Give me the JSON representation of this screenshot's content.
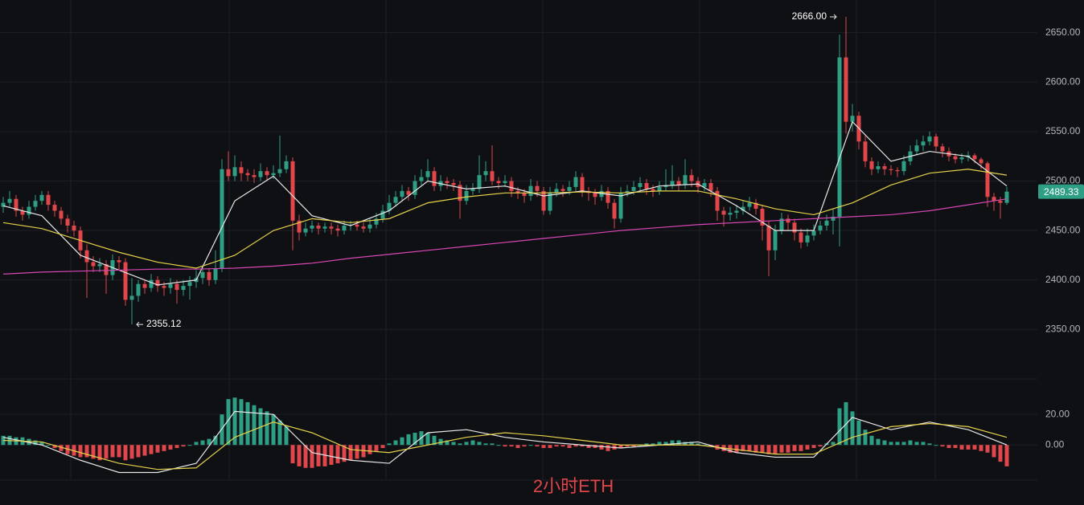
{
  "chart_data": {
    "type": "candlestick",
    "caption": "2小时ETH",
    "up_color": "#2e9e85",
    "down_color": "#e0464a",
    "ylim": [
      2300,
      2683
    ],
    "yticks": [
      {
        "value": 2350,
        "label": "2350.00"
      },
      {
        "value": 2400,
        "label": "2400.00"
      },
      {
        "value": 2450,
        "label": "2450.00"
      },
      {
        "value": 2500,
        "label": "2500.00"
      },
      {
        "value": 2550,
        "label": "2550.00"
      },
      {
        "value": 2600,
        "label": "2600.00"
      },
      {
        "value": 2650,
        "label": "2650.00"
      }
    ],
    "grid": true,
    "last_price": {
      "value": 2489.33,
      "label": "2489.33"
    },
    "high_marker": {
      "value": 2666,
      "label": "2666.00"
    },
    "low_marker": {
      "value": 2355.12,
      "label": "2355.12"
    },
    "ohlc": [
      [
        2474,
        2484,
        2468,
        2478
      ],
      [
        2478,
        2490,
        2474,
        2482
      ],
      [
        2482,
        2486,
        2464,
        2470
      ],
      [
        2470,
        2474,
        2460,
        2466
      ],
      [
        2466,
        2480,
        2462,
        2474
      ],
      [
        2474,
        2486,
        2470,
        2480
      ],
      [
        2480,
        2490,
        2476,
        2486
      ],
      [
        2486,
        2490,
        2470,
        2476
      ],
      [
        2476,
        2480,
        2464,
        2470
      ],
      [
        2470,
        2474,
        2456,
        2462
      ],
      [
        2462,
        2466,
        2448,
        2455
      ],
      [
        2455,
        2460,
        2444,
        2450
      ],
      [
        2450,
        2454,
        2422,
        2430
      ],
      [
        2430,
        2436,
        2382,
        2418
      ],
      [
        2418,
        2424,
        2408,
        2414
      ],
      [
        2414,
        2422,
        2408,
        2416
      ],
      [
        2416,
        2420,
        2386,
        2405
      ],
      [
        2405,
        2426,
        2400,
        2420
      ],
      [
        2420,
        2424,
        2410,
        2418
      ],
      [
        2418,
        2422,
        2374,
        2380
      ],
      [
        2380,
        2402,
        2355.12,
        2384
      ],
      [
        2384,
        2400,
        2378,
        2396
      ],
      [
        2396,
        2400,
        2386,
        2392
      ],
      [
        2392,
        2406,
        2388,
        2400
      ],
      [
        2400,
        2404,
        2388,
        2394
      ],
      [
        2394,
        2398,
        2384,
        2392
      ],
      [
        2392,
        2402,
        2386,
        2396
      ],
      [
        2396,
        2400,
        2376,
        2390
      ],
      [
        2390,
        2400,
        2384,
        2394
      ],
      [
        2394,
        2404,
        2380,
        2398
      ],
      [
        2398,
        2410,
        2392,
        2402
      ],
      [
        2402,
        2414,
        2396,
        2408
      ],
      [
        2408,
        2412,
        2394,
        2400
      ],
      [
        2400,
        2430,
        2396,
        2412
      ],
      [
        2412,
        2522,
        2408,
        2512
      ],
      [
        2512,
        2530,
        2500,
        2505
      ],
      [
        2505,
        2526,
        2500,
        2514
      ],
      [
        2514,
        2520,
        2500,
        2508
      ],
      [
        2508,
        2512,
        2500,
        2506
      ],
      [
        2506,
        2512,
        2498,
        2504
      ],
      [
        2504,
        2518,
        2500,
        2510
      ],
      [
        2510,
        2514,
        2500,
        2506
      ],
      [
        2506,
        2516,
        2502,
        2508
      ],
      [
        2508,
        2546,
        2504,
        2512
      ],
      [
        2512,
        2526,
        2508,
        2520
      ],
      [
        2520,
        2524,
        2430,
        2460
      ],
      [
        2460,
        2466,
        2440,
        2448
      ],
      [
        2448,
        2458,
        2444,
        2452
      ],
      [
        2452,
        2460,
        2448,
        2455
      ],
      [
        2455,
        2458,
        2446,
        2452
      ],
      [
        2452,
        2458,
        2448,
        2454
      ],
      [
        2454,
        2458,
        2446,
        2452
      ],
      [
        2452,
        2456,
        2444,
        2450
      ],
      [
        2450,
        2460,
        2446,
        2455
      ],
      [
        2455,
        2460,
        2450,
        2456
      ],
      [
        2456,
        2460,
        2450,
        2454
      ],
      [
        2454,
        2458,
        2448,
        2452
      ],
      [
        2452,
        2462,
        2448,
        2456
      ],
      [
        2456,
        2468,
        2452,
        2462
      ],
      [
        2462,
        2476,
        2458,
        2470
      ],
      [
        2470,
        2486,
        2466,
        2478
      ],
      [
        2478,
        2490,
        2474,
        2484
      ],
      [
        2484,
        2496,
        2480,
        2490
      ],
      [
        2490,
        2494,
        2480,
        2486
      ],
      [
        2486,
        2506,
        2482,
        2500
      ],
      [
        2500,
        2512,
        2496,
        2504
      ],
      [
        2504,
        2522,
        2500,
        2510
      ],
      [
        2510,
        2514,
        2490,
        2495
      ],
      [
        2495,
        2506,
        2490,
        2500
      ],
      [
        2500,
        2504,
        2492,
        2498
      ],
      [
        2498,
        2502,
        2490,
        2496
      ],
      [
        2496,
        2500,
        2462,
        2480
      ],
      [
        2480,
        2496,
        2476,
        2490
      ],
      [
        2490,
        2498,
        2486,
        2492
      ],
      [
        2492,
        2526,
        2488,
        2506
      ],
      [
        2506,
        2520,
        2500,
        2510
      ],
      [
        2510,
        2536,
        2496,
        2500
      ],
      [
        2500,
        2504,
        2492,
        2498
      ],
      [
        2498,
        2506,
        2494,
        2500
      ],
      [
        2500,
        2504,
        2484,
        2490
      ],
      [
        2490,
        2494,
        2482,
        2488
      ],
      [
        2488,
        2492,
        2478,
        2485
      ],
      [
        2485,
        2502,
        2480,
        2495
      ],
      [
        2495,
        2500,
        2484,
        2490
      ],
      [
        2490,
        2494,
        2466,
        2470
      ],
      [
        2470,
        2494,
        2466,
        2488
      ],
      [
        2488,
        2498,
        2484,
        2492
      ],
      [
        2492,
        2496,
        2484,
        2490
      ],
      [
        2490,
        2500,
        2486,
        2494
      ],
      [
        2494,
        2510,
        2490,
        2504
      ],
      [
        2504,
        2508,
        2484,
        2490
      ],
      [
        2490,
        2494,
        2480,
        2488
      ],
      [
        2488,
        2492,
        2476,
        2484
      ],
      [
        2484,
        2496,
        2480,
        2490
      ],
      [
        2490,
        2494,
        2472,
        2478
      ],
      [
        2478,
        2482,
        2452,
        2462
      ],
      [
        2462,
        2494,
        2458,
        2488
      ],
      [
        2488,
        2496,
        2484,
        2490
      ],
      [
        2490,
        2500,
        2486,
        2494
      ],
      [
        2494,
        2504,
        2490,
        2498
      ],
      [
        2498,
        2502,
        2486,
        2492
      ],
      [
        2492,
        2496,
        2484,
        2490
      ],
      [
        2490,
        2500,
        2486,
        2494
      ],
      [
        2494,
        2512,
        2490,
        2496
      ],
      [
        2496,
        2516,
        2492,
        2500
      ],
      [
        2500,
        2504,
        2490,
        2496
      ],
      [
        2496,
        2522,
        2492,
        2506
      ],
      [
        2506,
        2512,
        2494,
        2500
      ],
      [
        2500,
        2504,
        2488,
        2494
      ],
      [
        2494,
        2502,
        2490,
        2498
      ],
      [
        2498,
        2502,
        2484,
        2490
      ],
      [
        2490,
        2494,
        2460,
        2470
      ],
      [
        2470,
        2474,
        2454,
        2466
      ],
      [
        2466,
        2474,
        2460,
        2468
      ],
      [
        2468,
        2476,
        2462,
        2470
      ],
      [
        2470,
        2480,
        2466,
        2474
      ],
      [
        2474,
        2484,
        2470,
        2478
      ],
      [
        2478,
        2482,
        2466,
        2472
      ],
      [
        2472,
        2476,
        2440,
        2455
      ],
      [
        2455,
        2460,
        2404,
        2430
      ],
      [
        2430,
        2456,
        2420,
        2450
      ],
      [
        2450,
        2468,
        2446,
        2462
      ],
      [
        2462,
        2466,
        2450,
        2458
      ],
      [
        2458,
        2462,
        2440,
        2448
      ],
      [
        2448,
        2452,
        2432,
        2438
      ],
      [
        2438,
        2452,
        2434,
        2445
      ],
      [
        2445,
        2456,
        2440,
        2450
      ],
      [
        2450,
        2460,
        2446,
        2455
      ],
      [
        2455,
        2466,
        2450,
        2460
      ],
      [
        2460,
        2472,
        2446,
        2464
      ],
      [
        2464,
        2648,
        2434,
        2625
      ],
      [
        2625,
        2666,
        2548,
        2560
      ],
      [
        2560,
        2578,
        2550,
        2566
      ],
      [
        2566,
        2570,
        2532,
        2540
      ],
      [
        2540,
        2546,
        2514,
        2520
      ],
      [
        2520,
        2524,
        2506,
        2512
      ],
      [
        2512,
        2520,
        2508,
        2515
      ],
      [
        2515,
        2518,
        2506,
        2512
      ],
      [
        2512,
        2516,
        2506,
        2511
      ],
      [
        2511,
        2514,
        2504,
        2510
      ],
      [
        2510,
        2526,
        2506,
        2520
      ],
      [
        2520,
        2536,
        2516,
        2530
      ],
      [
        2530,
        2542,
        2526,
        2536
      ],
      [
        2536,
        2546,
        2530,
        2540
      ],
      [
        2540,
        2550,
        2536,
        2545
      ],
      [
        2545,
        2548,
        2530,
        2535
      ],
      [
        2535,
        2538,
        2524,
        2530
      ],
      [
        2530,
        2534,
        2520,
        2525
      ],
      [
        2525,
        2528,
        2518,
        2522
      ],
      [
        2522,
        2528,
        2518,
        2524
      ],
      [
        2524,
        2530,
        2520,
        2526
      ],
      [
        2526,
        2528,
        2518,
        2522
      ],
      [
        2522,
        2524,
        2512,
        2518
      ],
      [
        2518,
        2520,
        2474,
        2484
      ],
      [
        2484,
        2488,
        2470,
        2480
      ],
      [
        2480,
        2484,
        2462,
        2478
      ],
      [
        2478,
        2494,
        2476,
        2489.33
      ]
    ],
    "line_x": [
      0,
      6,
      12,
      18,
      24,
      30,
      36,
      42,
      48,
      54,
      60,
      66,
      72,
      78,
      84,
      90,
      96,
      102,
      108,
      114,
      120,
      126,
      132,
      138,
      144,
      150,
      156
    ],
    "ma_lines": [
      {
        "color": "#e8e8e8",
        "values": [
          2475,
          2465,
          2425,
          2410,
          2395,
          2400,
          2480,
          2505,
          2465,
          2455,
          2470,
          2500,
          2492,
          2495,
          2485,
          2490,
          2485,
          2495,
          2497,
          2475,
          2450,
          2450,
          2560,
          2520,
          2530,
          2525,
          2495
        ]
      },
      {
        "color": "#e6d14a",
        "values": [
          2458,
          2452,
          2440,
          2428,
          2418,
          2412,
          2425,
          2450,
          2462,
          2458,
          2462,
          2478,
          2484,
          2488,
          2488,
          2489,
          2488,
          2490,
          2490,
          2482,
          2472,
          2466,
          2478,
          2496,
          2508,
          2512,
          2506
        ]
      },
      {
        "color": "#d946b5",
        "values": [
          2406,
          2408,
          2409,
          2410,
          2411,
          2411,
          2412,
          2414,
          2417,
          2422,
          2426,
          2430,
          2434,
          2438,
          2442,
          2446,
          2450,
          2453,
          2456,
          2458,
          2460,
          2462,
          2464,
          2466,
          2470,
          2476,
          2482
        ]
      }
    ],
    "macd": {
      "ylim": [
        -23,
        39
      ],
      "yticks": [
        {
          "value": 0,
          "label": "0.00"
        },
        {
          "value": 20,
          "label": "20.00"
        }
      ],
      "histogram": [
        6,
        6,
        5,
        5,
        4,
        3,
        2,
        0,
        -2,
        -4,
        -6,
        -7,
        -8,
        -8,
        -9,
        -10,
        -9,
        -8,
        -8,
        -10,
        -9,
        -8,
        -7,
        -6,
        -5,
        -4,
        -3,
        -2,
        -1,
        0,
        2,
        3,
        4,
        6,
        20,
        30,
        31,
        30,
        28,
        26,
        24,
        22,
        20,
        16,
        12,
        -12,
        -14,
        -15,
        -15,
        -14,
        -14,
        -13,
        -12,
        -11,
        -10,
        -9,
        -8,
        -6,
        -4,
        -2,
        1,
        3,
        5,
        7,
        8,
        9,
        8,
        6,
        4,
        3,
        2,
        1,
        2,
        3,
        2,
        1,
        1,
        0,
        -1,
        -1,
        -2,
        -1,
        0,
        -1,
        -2,
        -2,
        -1,
        -1,
        -2,
        -1,
        -1,
        -2,
        -2,
        -3,
        -4,
        -3,
        -2,
        -1,
        -1,
        0,
        1,
        1,
        2,
        2,
        3,
        3,
        2,
        2,
        1,
        0,
        -1,
        -3,
        -4,
        -5,
        -5,
        -4,
        -4,
        -5,
        -5,
        -6,
        -6,
        -5,
        -5,
        -4,
        -4,
        -3,
        -2,
        -1,
        1,
        2,
        24,
        28,
        22,
        16,
        10,
        6,
        4,
        3,
        2,
        2,
        2,
        3,
        2,
        2,
        1,
        0,
        -1,
        -2,
        -2,
        -3,
        -3,
        -3,
        -4,
        -5,
        -8,
        -11,
        -14
      ],
      "lines": [
        {
          "color": "#e8e8e8",
          "values": [
            5,
            0,
            -10,
            -18,
            -18,
            -12,
            22,
            20,
            -5,
            -10,
            -12,
            8,
            10,
            5,
            2,
            0,
            -2,
            0,
            2,
            -5,
            -8,
            -8,
            18,
            10,
            15,
            10,
            0
          ]
        },
        {
          "color": "#e6d14a",
          "values": [
            3,
            2,
            -5,
            -12,
            -16,
            -15,
            5,
            15,
            8,
            -3,
            -5,
            0,
            5,
            8,
            6,
            3,
            0,
            0,
            0,
            -3,
            -6,
            -6,
            5,
            12,
            14,
            12,
            5
          ]
        }
      ]
    }
  }
}
